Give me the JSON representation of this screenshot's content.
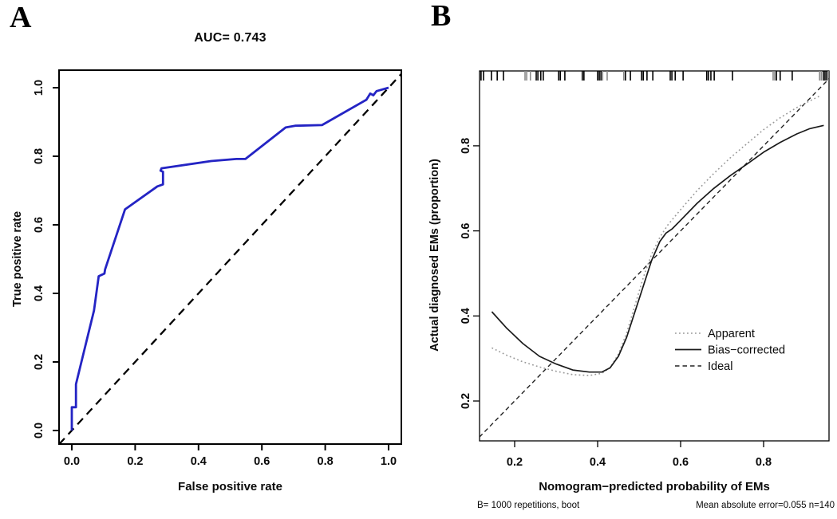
{
  "figure": {
    "panel_a_label": "A",
    "panel_b_label": "B"
  },
  "colors": {
    "roc_curve": "#2424c4",
    "reference_line": "#000000",
    "apparent": "#999999",
    "bias_corrected": "#1a1a1a",
    "ideal": "#222222",
    "axis": "#000000"
  },
  "chart_data": [
    {
      "type": "line",
      "id": "roc-plot",
      "title": "AUC= 0.743",
      "auc": 0.743,
      "xlabel": "False positive rate",
      "ylabel": "True positive rate",
      "xlim": [
        -0.04,
        1.04
      ],
      "ylim": [
        -0.04,
        1.04
      ],
      "x_ticks": [
        0.0,
        0.2,
        0.4,
        0.6,
        0.8,
        1.0
      ],
      "y_ticks": [
        0.0,
        0.2,
        0.4,
        0.6,
        0.8,
        1.0
      ],
      "grid": false,
      "series": [
        {
          "name": "ROC curve",
          "style": "solid",
          "color": "#2424c4",
          "points": [
            [
              0.0,
              0.0
            ],
            [
              0.0,
              0.068
            ],
            [
              0.013,
              0.068
            ],
            [
              0.013,
              0.135
            ],
            [
              0.07,
              0.35
            ],
            [
              0.085,
              0.45
            ],
            [
              0.103,
              0.458
            ],
            [
              0.105,
              0.47
            ],
            [
              0.168,
              0.645
            ],
            [
              0.27,
              0.712
            ],
            [
              0.288,
              0.718
            ],
            [
              0.288,
              0.755
            ],
            [
              0.28,
              0.758
            ],
            [
              0.283,
              0.765
            ],
            [
              0.44,
              0.786
            ],
            [
              0.52,
              0.792
            ],
            [
              0.548,
              0.792
            ],
            [
              0.675,
              0.884
            ],
            [
              0.705,
              0.889
            ],
            [
              0.79,
              0.891
            ],
            [
              0.93,
              0.965
            ],
            [
              0.942,
              0.983
            ],
            [
              0.952,
              0.978
            ],
            [
              0.962,
              0.99
            ],
            [
              1.0,
              1.0
            ]
          ]
        },
        {
          "name": "Chance reference",
          "style": "dashed",
          "color": "#000000",
          "points": [
            [
              -0.04,
              -0.04
            ],
            [
              1.04,
              1.04
            ]
          ]
        }
      ]
    },
    {
      "type": "line",
      "id": "calibration-plot",
      "title": "",
      "xlabel": "Nomogram−predicted probability of EMs",
      "ylabel": "Actual diagnosed EMs (proportion)",
      "xlim": [
        0.115,
        0.958
      ],
      "ylim": [
        0.106,
        0.978
      ],
      "x_ticks": [
        0.2,
        0.4,
        0.6,
        0.8
      ],
      "y_ticks": [
        0.2,
        0.4,
        0.6,
        0.8
      ],
      "grid": false,
      "footnote_left": "B= 1000 repetitions, boot",
      "footnote_right": "Mean absolute error=0.055 n=140",
      "mean_absolute_error": 0.055,
      "n": 140,
      "legend": [
        {
          "label": "Apparent",
          "style": "dotted",
          "color": "#999999"
        },
        {
          "label": "Bias−corrected",
          "style": "solid",
          "color": "#1a1a1a"
        },
        {
          "label": "Ideal",
          "style": "dashed",
          "color": "#222222"
        }
      ],
      "rug_dark": [
        0.119,
        0.125,
        0.144,
        0.158,
        0.173,
        0.252,
        0.256,
        0.263,
        0.269,
        0.306,
        0.31,
        0.321,
        0.363,
        0.367,
        0.4,
        0.404,
        0.408,
        0.467,
        0.479,
        0.506,
        0.51,
        0.519,
        0.533,
        0.575,
        0.579,
        0.587,
        0.606,
        0.663,
        0.667,
        0.673,
        0.681,
        0.725,
        0.831,
        0.84,
        0.869,
        0.944,
        0.948,
        0.952
      ],
      "rug_light": [
        0.225,
        0.229,
        0.238,
        0.412,
        0.423,
        0.463,
        0.823,
        0.827,
        0.935,
        0.939,
        0.956
      ],
      "series": [
        {
          "name": "Apparent",
          "style": "dotted",
          "color": "#999999",
          "points": [
            [
              0.145,
              0.325
            ],
            [
              0.18,
              0.308
            ],
            [
              0.22,
              0.292
            ],
            [
              0.26,
              0.28
            ],
            [
              0.3,
              0.27
            ],
            [
              0.34,
              0.262
            ],
            [
              0.38,
              0.26
            ],
            [
              0.41,
              0.265
            ],
            [
              0.43,
              0.278
            ],
            [
              0.45,
              0.31
            ],
            [
              0.47,
              0.36
            ],
            [
              0.49,
              0.425
            ],
            [
              0.51,
              0.49
            ],
            [
              0.53,
              0.545
            ],
            [
              0.55,
              0.585
            ],
            [
              0.57,
              0.615
            ],
            [
              0.6,
              0.65
            ],
            [
              0.64,
              0.695
            ],
            [
              0.68,
              0.735
            ],
            [
              0.72,
              0.772
            ],
            [
              0.76,
              0.805
            ],
            [
              0.8,
              0.838
            ],
            [
              0.84,
              0.866
            ],
            [
              0.88,
              0.89
            ],
            [
              0.91,
              0.905
            ],
            [
              0.935,
              0.917
            ]
          ]
        },
        {
          "name": "Bias−corrected",
          "style": "solid",
          "color": "#1a1a1a",
          "points": [
            [
              0.145,
              0.41
            ],
            [
              0.18,
              0.372
            ],
            [
              0.22,
              0.335
            ],
            [
              0.26,
              0.305
            ],
            [
              0.3,
              0.287
            ],
            [
              0.34,
              0.273
            ],
            [
              0.38,
              0.268
            ],
            [
              0.41,
              0.268
            ],
            [
              0.43,
              0.278
            ],
            [
              0.45,
              0.305
            ],
            [
              0.47,
              0.35
            ],
            [
              0.49,
              0.41
            ],
            [
              0.51,
              0.47
            ],
            [
              0.53,
              0.53
            ],
            [
              0.55,
              0.575
            ],
            [
              0.565,
              0.595
            ],
            [
              0.58,
              0.605
            ],
            [
              0.6,
              0.625
            ],
            [
              0.64,
              0.665
            ],
            [
              0.68,
              0.7
            ],
            [
              0.72,
              0.73
            ],
            [
              0.76,
              0.757
            ],
            [
              0.8,
              0.785
            ],
            [
              0.84,
              0.808
            ],
            [
              0.88,
              0.828
            ],
            [
              0.91,
              0.84
            ],
            [
              0.945,
              0.848
            ]
          ]
        },
        {
          "name": "Ideal",
          "style": "dashed",
          "color": "#222222",
          "points": [
            [
              0.115,
              0.115
            ],
            [
              0.958,
              0.958
            ]
          ]
        }
      ]
    }
  ]
}
